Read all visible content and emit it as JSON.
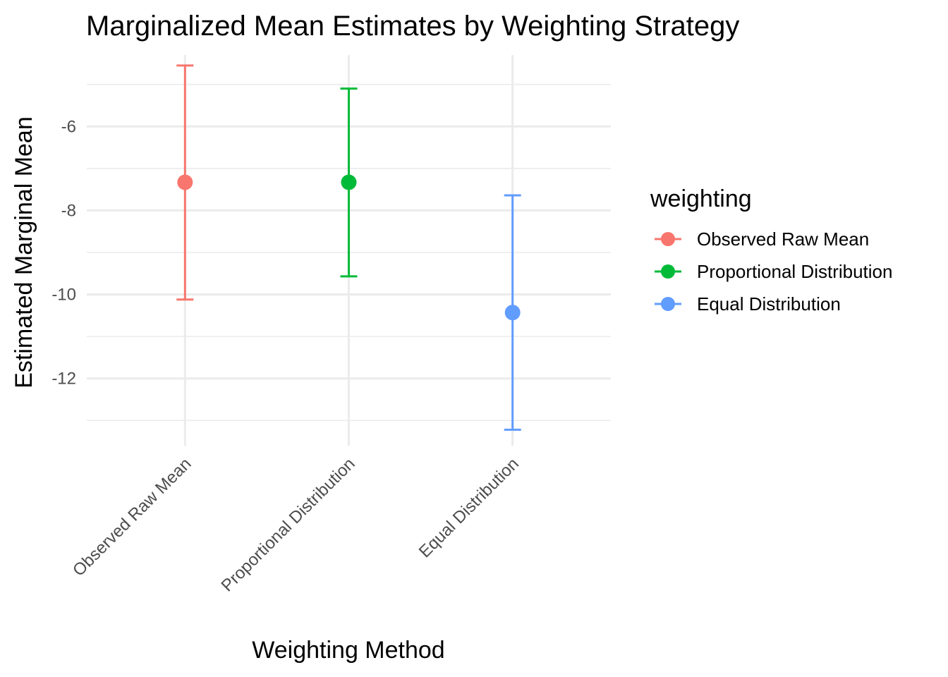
{
  "chart_data": {
    "type": "errorbar",
    "title": "Marginalized Mean Estimates by Weighting Strategy",
    "xlabel": "Weighting Method",
    "ylabel": "Estimated Marginal Mean",
    "categories": [
      "Observed Raw Mean",
      "Proportional Distribution",
      "Equal Distribution"
    ],
    "series": [
      {
        "name": "Observed Raw Mean",
        "color": "#F8766D",
        "mean": -7.33,
        "lower": -10.12,
        "upper": -4.55
      },
      {
        "name": "Proportional Distribution",
        "color": "#00BA38",
        "mean": -7.33,
        "lower": -9.57,
        "upper": -5.1
      },
      {
        "name": "Equal Distribution",
        "color": "#619CFF",
        "mean": -10.43,
        "lower": -13.22,
        "upper": -7.64
      }
    ],
    "y_ticks": [
      -6,
      -8,
      -10,
      -12
    ],
    "y_tick_labels": [
      "-6",
      "-8",
      "-10",
      "-12"
    ],
    "ylim": [
      -13.6,
      -4.3
    ],
    "grid": true,
    "legend": {
      "title": "weighting",
      "position": "right"
    }
  }
}
